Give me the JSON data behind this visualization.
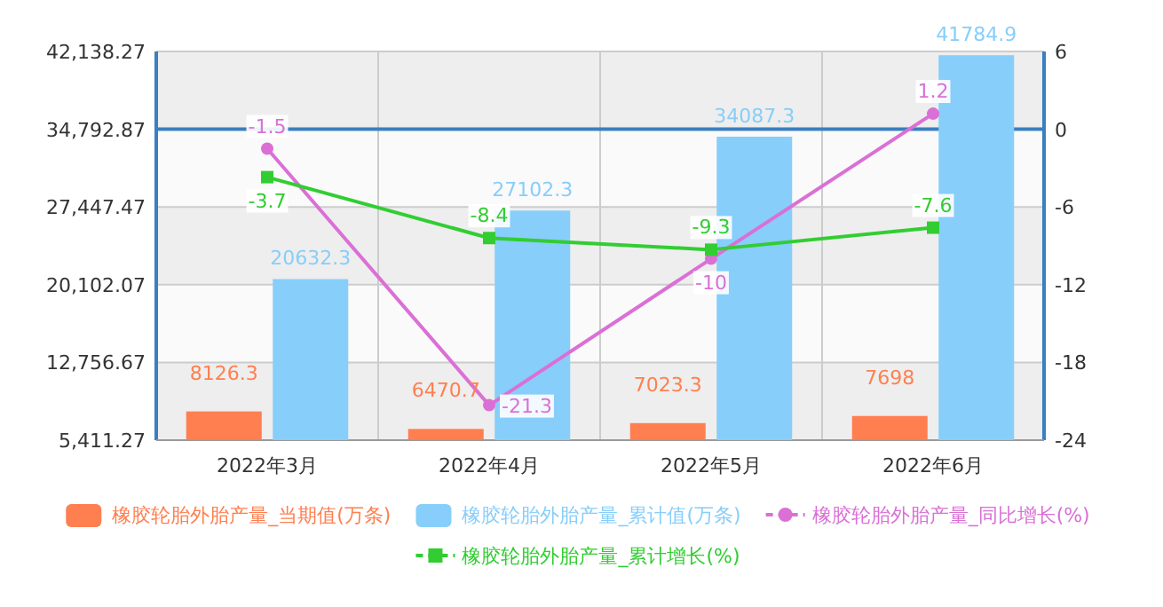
{
  "chart_data": {
    "type": "bar",
    "categories": [
      "2022年3月",
      "2022年4月",
      "2022年5月",
      "2022年6月"
    ],
    "series": [
      {
        "name": "橡胶轮胎外胎产量_当期值(万条)",
        "color": "#ff7f50",
        "values": [
          8126.3,
          6470.7,
          7023.3,
          7698
        ]
      },
      {
        "name": "橡胶轮胎外胎产量_累计值(万条)",
        "color": "#87cefa",
        "values": [
          20632.3,
          27102.3,
          34087.3,
          41784.9
        ]
      },
      {
        "name": "橡胶轮胎外胎产量_同比增长(%)",
        "type": "line",
        "axis": "y2",
        "marker": "circle",
        "color": "#da70d6",
        "values": [
          -1.5,
          -21.3,
          -10,
          1.2
        ]
      },
      {
        "name": "橡胶轮胎外胎产量_累计增长(%)",
        "type": "line",
        "axis": "y2",
        "marker": "square",
        "color": "#32cd32",
        "values": [
          -3.7,
          -8.4,
          -9.3,
          -7.6
        ]
      }
    ],
    "ylim": [
      5411.27,
      42138.27
    ],
    "yticks": [
      {
        "value": 5411.27,
        "label": "5,411.27"
      },
      {
        "value": 12756.67,
        "label": "12,756.67"
      },
      {
        "value": 20102.07,
        "label": "20,102.07"
      },
      {
        "value": 27447.47,
        "label": "27,447.47"
      },
      {
        "value": 34792.87,
        "label": "34,792.87"
      },
      {
        "value": 42138.27,
        "label": "42,138.27"
      }
    ],
    "y2lim": [
      -24,
      6
    ],
    "y2ticks": [
      -24,
      -18,
      -12,
      -6,
      0,
      6
    ],
    "ref_lines": [
      {
        "axis": "y2",
        "value": 0,
        "color": "#3b7fc0"
      }
    ],
    "grid": true,
    "legend": "bottom",
    "data_labels": true
  }
}
